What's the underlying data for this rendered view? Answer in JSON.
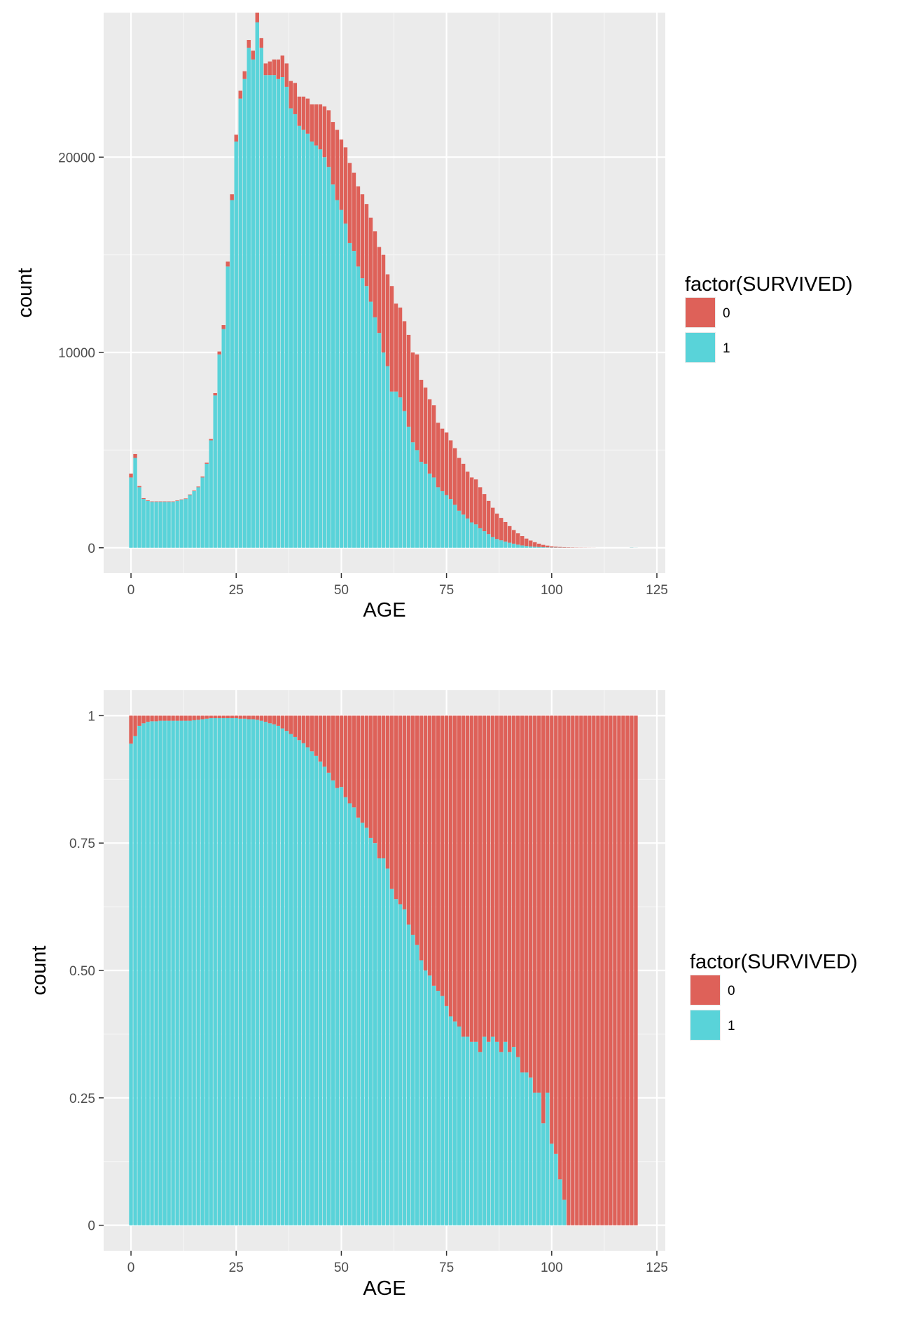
{
  "colors": {
    "panel_bg": "#EBEBEB",
    "grid_major": "#FFFFFF",
    "survived_0": "#DE6159",
    "survived_1": "#59D3D9",
    "tick_text": "#4D4D4D"
  },
  "chart_data": [
    {
      "type": "bar",
      "position": "stack",
      "xlabel": "AGE",
      "ylabel": "count",
      "xlim": [
        -6.5,
        127
      ],
      "ylim": [
        -1300,
        27400
      ],
      "x_ticks": [
        0,
        25,
        50,
        75,
        100,
        125
      ],
      "x_tick_labels": [
        "0",
        "25",
        "50",
        "75",
        "100",
        "125"
      ],
      "y_ticks": [
        0,
        10000,
        20000
      ],
      "y_tick_labels": [
        "0",
        "10000",
        "20000"
      ],
      "grid": true,
      "legend": {
        "title": "factor(SURVIVED)",
        "position": "right",
        "labels": [
          "0",
          "1"
        ]
      },
      "x": [
        0,
        1,
        2,
        3,
        4,
        5,
        6,
        7,
        8,
        9,
        10,
        11,
        12,
        13,
        14,
        15,
        16,
        17,
        18,
        19,
        20,
        21,
        22,
        23,
        24,
        25,
        26,
        27,
        28,
        29,
        30,
        31,
        32,
        33,
        34,
        35,
        36,
        37,
        38,
        39,
        40,
        41,
        42,
        43,
        44,
        45,
        46,
        47,
        48,
        49,
        50,
        51,
        52,
        53,
        54,
        55,
        56,
        57,
        58,
        59,
        60,
        61,
        62,
        63,
        64,
        65,
        66,
        67,
        68,
        69,
        70,
        71,
        72,
        73,
        74,
        75,
        76,
        77,
        78,
        79,
        80,
        81,
        82,
        83,
        84,
        85,
        86,
        87,
        88,
        89,
        90,
        91,
        92,
        93,
        94,
        95,
        96,
        97,
        98,
        99,
        100,
        101,
        102,
        103,
        104,
        105,
        106,
        107,
        108,
        109,
        110,
        119,
        120
      ],
      "series": [
        {
          "name": "1",
          "values": [
            3600,
            4600,
            3100,
            2500,
            2400,
            2350,
            2350,
            2350,
            2350,
            2350,
            2350,
            2400,
            2450,
            2500,
            2700,
            2900,
            3100,
            3600,
            4300,
            5500,
            7800,
            9900,
            11200,
            14400,
            17800,
            20800,
            23000,
            24000,
            25600,
            25000,
            26900,
            25600,
            24200,
            24200,
            24200,
            24000,
            24100,
            23600,
            22500,
            22200,
            21600,
            21400,
            21200,
            20800,
            20600,
            20400,
            20000,
            19500,
            18600,
            17800,
            17300,
            16600,
            15600,
            15200,
            14400,
            13800,
            13400,
            12600,
            11800,
            11000,
            10000,
            9300,
            8000,
            8000,
            7700,
            7000,
            6200,
            5400,
            5000,
            4400,
            4300,
            3800,
            3600,
            3100,
            2900,
            2700,
            2500,
            2200,
            1900,
            1700,
            1500,
            1300,
            1200,
            1000,
            850,
            700,
            550,
            450,
            380,
            320,
            260,
            210,
            160,
            120,
            90,
            70,
            55,
            40,
            28,
            20,
            14,
            10,
            8,
            6,
            5,
            4,
            3,
            2,
            2,
            1,
            1,
            10,
            5
          ]
        },
        {
          "name": "0",
          "values": [
            200,
            200,
            60,
            40,
            30,
            25,
            25,
            25,
            25,
            25,
            25,
            25,
            25,
            25,
            30,
            30,
            35,
            45,
            55,
            70,
            120,
            150,
            200,
            250,
            300,
            350,
            400,
            400,
            400,
            450,
            500,
            500,
            600,
            700,
            800,
            1000,
            1100,
            1200,
            1400,
            1600,
            1500,
            1700,
            1800,
            1900,
            2100,
            2300,
            2600,
            2900,
            3200,
            3600,
            3600,
            3900,
            4100,
            4000,
            4100,
            4300,
            4200,
            4300,
            4400,
            4400,
            5000,
            4700,
            5400,
            4500,
            4600,
            4600,
            4700,
            4600,
            4900,
            4200,
            3900,
            3800,
            3700,
            3300,
            3200,
            3200,
            3000,
            2900,
            2700,
            2600,
            2400,
            2300,
            2300,
            2100,
            1900,
            1700,
            1500,
            1300,
            1150,
            1000,
            850,
            700,
            580,
            480,
            380,
            300,
            230,
            170,
            120,
            90,
            60,
            45,
            32,
            24,
            18,
            14,
            10,
            8,
            6,
            4,
            3,
            3,
            1
          ]
        }
      ]
    },
    {
      "type": "bar",
      "position": "fill",
      "xlabel": "AGE",
      "ylabel": "count",
      "xlim": [
        -6.5,
        127
      ],
      "ylim": [
        -0.05,
        1.05
      ],
      "x_ticks": [
        0,
        25,
        50,
        75,
        100,
        125
      ],
      "x_tick_labels": [
        "0",
        "25",
        "50",
        "75",
        "100",
        "125"
      ],
      "y_ticks": [
        0,
        0.25,
        0.5,
        0.75,
        1
      ],
      "y_tick_labels": [
        "0",
        "0.25",
        "0.50",
        "0.75",
        "1"
      ],
      "grid": true,
      "legend": {
        "title": "factor(SURVIVED)",
        "position": "right",
        "labels": [
          "0",
          "1"
        ]
      },
      "x": [
        0,
        1,
        2,
        3,
        4,
        5,
        6,
        7,
        8,
        9,
        10,
        11,
        12,
        13,
        14,
        15,
        16,
        17,
        18,
        19,
        20,
        21,
        22,
        23,
        24,
        25,
        26,
        27,
        28,
        29,
        30,
        31,
        32,
        33,
        34,
        35,
        36,
        37,
        38,
        39,
        40,
        41,
        42,
        43,
        44,
        45,
        46,
        47,
        48,
        49,
        50,
        51,
        52,
        53,
        54,
        55,
        56,
        57,
        58,
        59,
        60,
        61,
        62,
        63,
        64,
        65,
        66,
        67,
        68,
        69,
        70,
        71,
        72,
        73,
        74,
        75,
        76,
        77,
        78,
        79,
        80,
        81,
        82,
        83,
        84,
        85,
        86,
        87,
        88,
        89,
        90,
        91,
        92,
        93,
        94,
        95,
        96,
        97,
        98,
        99,
        100,
        101,
        102,
        103,
        104,
        105,
        106,
        107,
        108,
        109,
        110,
        111,
        112,
        113,
        114,
        115,
        116,
        117,
        118,
        119,
        120
      ],
      "series": [
        {
          "name": "1",
          "values": [
            0.945,
            0.96,
            0.98,
            0.985,
            0.988,
            0.989,
            0.989,
            0.99,
            0.99,
            0.99,
            0.99,
            0.99,
            0.99,
            0.99,
            0.99,
            0.991,
            0.992,
            0.993,
            0.994,
            0.995,
            0.995,
            0.995,
            0.995,
            0.995,
            0.995,
            0.995,
            0.994,
            0.994,
            0.993,
            0.993,
            0.992,
            0.99,
            0.988,
            0.985,
            0.983,
            0.98,
            0.975,
            0.97,
            0.964,
            0.958,
            0.952,
            0.946,
            0.938,
            0.93,
            0.921,
            0.91,
            0.9,
            0.888,
            0.873,
            0.858,
            0.86,
            0.84,
            0.828,
            0.82,
            0.8,
            0.79,
            0.78,
            0.76,
            0.75,
            0.72,
            0.72,
            0.7,
            0.66,
            0.64,
            0.63,
            0.62,
            0.59,
            0.57,
            0.55,
            0.52,
            0.5,
            0.49,
            0.47,
            0.46,
            0.45,
            0.43,
            0.41,
            0.4,
            0.39,
            0.37,
            0.37,
            0.36,
            0.36,
            0.34,
            0.37,
            0.36,
            0.37,
            0.36,
            0.34,
            0.36,
            0.34,
            0.35,
            0.33,
            0.3,
            0.3,
            0.29,
            0.26,
            0.26,
            0.2,
            0.26,
            0.16,
            0.14,
            0.09,
            0.05,
            0.0,
            0.0,
            0.0,
            0.0,
            0.0,
            0.0,
            0.0,
            0.0,
            0.0,
            0.0,
            0.0,
            0.0,
            0.0,
            0.0,
            0.0,
            0.0,
            0.0
          ]
        },
        {
          "name": "0",
          "values": [
            0.055,
            0.04,
            0.02,
            0.015,
            0.012,
            0.011,
            0.011,
            0.01,
            0.01,
            0.01,
            0.01,
            0.01,
            0.01,
            0.01,
            0.01,
            0.009,
            0.008,
            0.007,
            0.006,
            0.005,
            0.005,
            0.005,
            0.005,
            0.005,
            0.005,
            0.005,
            0.006,
            0.006,
            0.007,
            0.007,
            0.008,
            0.01,
            0.012,
            0.015,
            0.017,
            0.02,
            0.025,
            0.03,
            0.036,
            0.042,
            0.048,
            0.054,
            0.062,
            0.07,
            0.079,
            0.09,
            0.1,
            0.112,
            0.127,
            0.142,
            0.14,
            0.16,
            0.172,
            0.18,
            0.2,
            0.21,
            0.22,
            0.24,
            0.25,
            0.28,
            0.28,
            0.3,
            0.34,
            0.36,
            0.37,
            0.38,
            0.41,
            0.43,
            0.45,
            0.48,
            0.5,
            0.51,
            0.53,
            0.54,
            0.55,
            0.57,
            0.59,
            0.6,
            0.61,
            0.63,
            0.63,
            0.64,
            0.64,
            0.66,
            0.63,
            0.64,
            0.63,
            0.64,
            0.66,
            0.64,
            0.66,
            0.65,
            0.67,
            0.7,
            0.7,
            0.71,
            0.74,
            0.74,
            0.8,
            0.74,
            0.84,
            0.86,
            0.91,
            0.95,
            1.0,
            1.0,
            1.0,
            1.0,
            1.0,
            1.0,
            1.0,
            1.0,
            1.0,
            1.0,
            1.0,
            1.0,
            1.0,
            1.0,
            1.0,
            1.0,
            1.0
          ]
        }
      ]
    }
  ]
}
